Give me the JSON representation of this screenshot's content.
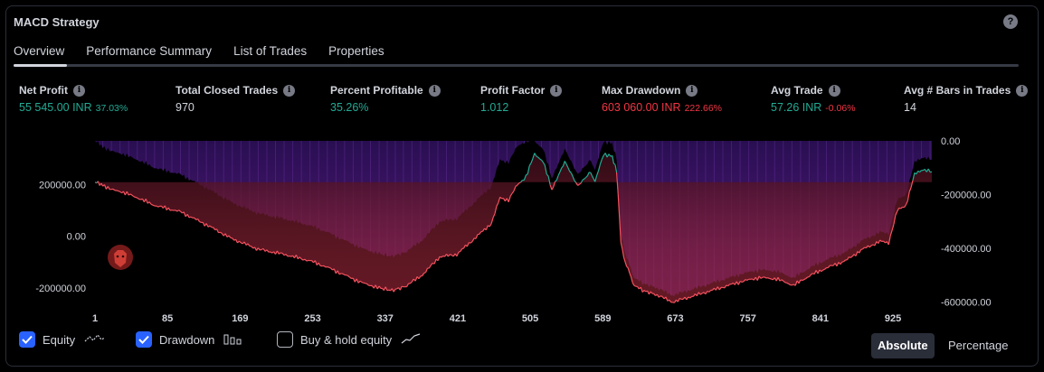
{
  "panel": {
    "title": "MACD Strategy"
  },
  "tabs": [
    "Overview",
    "Performance Summary",
    "List of Trades",
    "Properties"
  ],
  "metrics": [
    {
      "label": "Net Profit",
      "value": "55 545.00 INR",
      "pct": "37.03%",
      "color": "#22ab94"
    },
    {
      "label": "Total Closed Trades",
      "value": "970",
      "pct": "",
      "color": "#d1d4dc"
    },
    {
      "label": "Percent Profitable",
      "value": "35.26%",
      "pct": "",
      "color": "#22ab94"
    },
    {
      "label": "Profit Factor",
      "value": "1.012",
      "pct": "",
      "color": "#22ab94"
    },
    {
      "label": "Max Drawdown",
      "value": "603 060.00 INR",
      "pct": "222.66%",
      "color": "#f23645"
    },
    {
      "label": "Avg Trade",
      "value": "57.26 INR",
      "pct": "-0.06%",
      "color": "#22ab94",
      "pct_color": "#f23645"
    },
    {
      "label": "Avg # Bars in Trades",
      "value": "14",
      "pct": "",
      "color": "#d1d4dc"
    }
  ],
  "chart_data": {
    "type": "area",
    "x_ticks": [
      "1",
      "85",
      "169",
      "253",
      "337",
      "421",
      "505",
      "589",
      "673",
      "757",
      "841",
      "925"
    ],
    "left_axis": {
      "ticks": [
        "200000.00",
        "0.00",
        "-200000.00"
      ],
      "values": [
        200000,
        0,
        -200000
      ]
    },
    "right_axis": {
      "ticks": [
        "0.00",
        "-200000.00",
        "-400000.00",
        "-600000.00"
      ],
      "values": [
        0,
        -200000,
        -400000,
        -600000
      ]
    },
    "xlim": [
      1,
      970
    ],
    "equity_ylim": [
      -260000,
      370000
    ],
    "drawdown_ylim": [
      -605000,
      0
    ],
    "series": [
      {
        "name": "Equity",
        "color": "#22ab94",
        "x": [
          1,
          10,
          20,
          30,
          50,
          70,
          100,
          130,
          160,
          190,
          220,
          250,
          270,
          290,
          310,
          330,
          345,
          360,
          380,
          400,
          420,
          440,
          460,
          470,
          480,
          490,
          500,
          510,
          520,
          530,
          545,
          560,
          575,
          580,
          590,
          600,
          605,
          610,
          615,
          620,
          625,
          635,
          650,
          670,
          690,
          710,
          730,
          750,
          770,
          790,
          810,
          830,
          850,
          870,
          890,
          910,
          920,
          930,
          940,
          950,
          960,
          970
        ],
        "y": [
          210000,
          200000,
          180000,
          175000,
          150000,
          120000,
          95000,
          45000,
          -10000,
          -50000,
          -70000,
          -95000,
          -120000,
          -150000,
          -180000,
          -200000,
          -210000,
          -195000,
          -150000,
          -80000,
          -70000,
          -10000,
          50000,
          150000,
          140000,
          200000,
          230000,
          320000,
          290000,
          180000,
          290000,
          195000,
          250000,
          210000,
          320000,
          310000,
          250000,
          -20000,
          -105000,
          -140000,
          -190000,
          -210000,
          -225000,
          -255000,
          -235000,
          -215000,
          -195000,
          -175000,
          -160000,
          -165000,
          -190000,
          -150000,
          -120000,
          -95000,
          -50000,
          -20000,
          -25000,
          100000,
          120000,
          240000,
          260000,
          250000
        ]
      },
      {
        "name": "Drawdown",
        "color": "#7b2bd6",
        "x": [
          1,
          10,
          20,
          30,
          50,
          70,
          100,
          130,
          160,
          190,
          220,
          250,
          270,
          290,
          310,
          330,
          345,
          360,
          380,
          400,
          420,
          440,
          460,
          470,
          480,
          490,
          500,
          510,
          520,
          530,
          545,
          560,
          575,
          580,
          590,
          600,
          605,
          610,
          615,
          620,
          625,
          635,
          650,
          670,
          690,
          710,
          730,
          750,
          770,
          790,
          810,
          830,
          850,
          870,
          890,
          910,
          920,
          930,
          940,
          950,
          960,
          970
        ],
        "y": [
          0,
          -20000,
          -40000,
          -45000,
          -70000,
          -100000,
          -125000,
          -175000,
          -230000,
          -270000,
          -290000,
          -315000,
          -340000,
          -370000,
          -400000,
          -420000,
          -430000,
          -415000,
          -370000,
          -300000,
          -290000,
          -230000,
          -170000,
          -70000,
          -80000,
          -20000,
          0,
          0,
          -30000,
          -140000,
          -30000,
          -125000,
          -70000,
          -110000,
          0,
          -10000,
          -70000,
          -340000,
          -425000,
          -460000,
          -510000,
          -530000,
          -545000,
          -575000,
          -555000,
          -535000,
          -515000,
          -495000,
          -480000,
          -485000,
          -510000,
          -470000,
          -440000,
          -415000,
          -370000,
          -340000,
          -345000,
          -220000,
          -200000,
          -80000,
          -60000,
          -70000
        ]
      }
    ]
  },
  "legend": [
    {
      "label": "Equity",
      "checked": true,
      "glyph": "equity-line-icon"
    },
    {
      "label": "Drawdown",
      "checked": true,
      "glyph": "drawdown-bars-icon"
    },
    {
      "label": "Buy & hold equity",
      "checked": false,
      "glyph": "buy-hold-line-icon"
    }
  ],
  "modes": {
    "absolute": "Absolute",
    "percentage": "Percentage"
  },
  "help": "?"
}
